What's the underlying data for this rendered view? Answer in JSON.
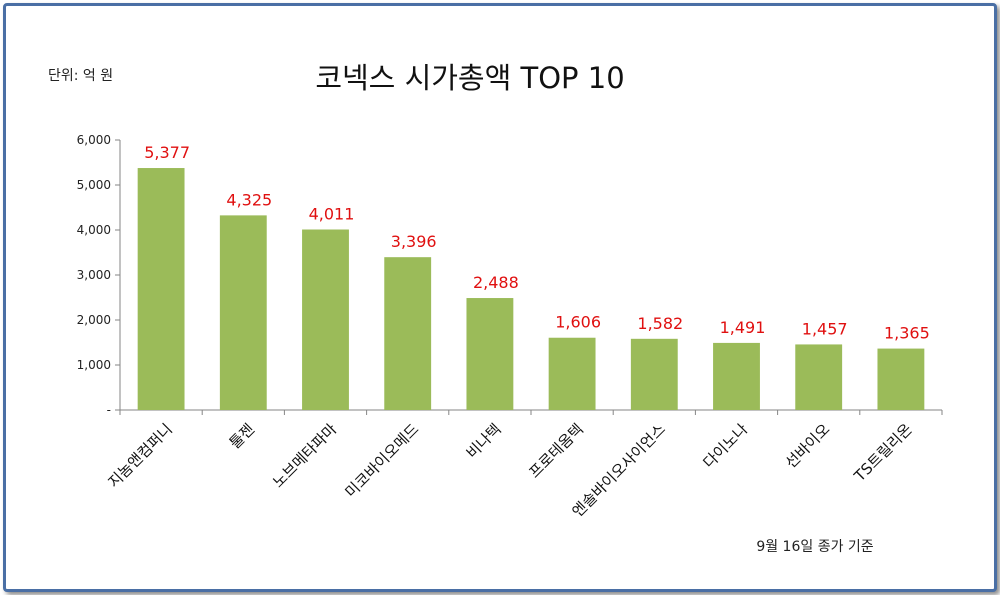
{
  "chart_data": {
    "type": "bar",
    "title": "코넥스 시가총액 TOP 10",
    "unit_label": "단위: 억 원",
    "note": "9월 16일 종가 기준",
    "categories": [
      "지놈앤컴퍼니",
      "툴젠",
      "노브메타파마",
      "미코바이오메드",
      "비나텍",
      "프로테옴텍",
      "엔솔바이오사이언스",
      "다이노나",
      "선바이오",
      "TS트릴리온"
    ],
    "values": [
      5377,
      4325,
      4011,
      3396,
      2488,
      1606,
      1582,
      1491,
      1457,
      1365
    ],
    "data_labels": [
      "5,377",
      "4,325",
      "4,011",
      "3,396",
      "2,488",
      "1,606",
      "1,582",
      "1,491",
      "1,457",
      "1,365"
    ],
    "y_ticks": [
      0,
      1000,
      2000,
      3000,
      4000,
      5000,
      6000
    ],
    "y_tick_labels": [
      "-",
      "1,000",
      "2,000",
      "3,000",
      "4,000",
      "5,000",
      "6,000"
    ],
    "ylim": [
      0,
      6000
    ],
    "grid": false,
    "legend": "none",
    "bar_color": "#9bbb59",
    "label_color": "#e01010"
  }
}
